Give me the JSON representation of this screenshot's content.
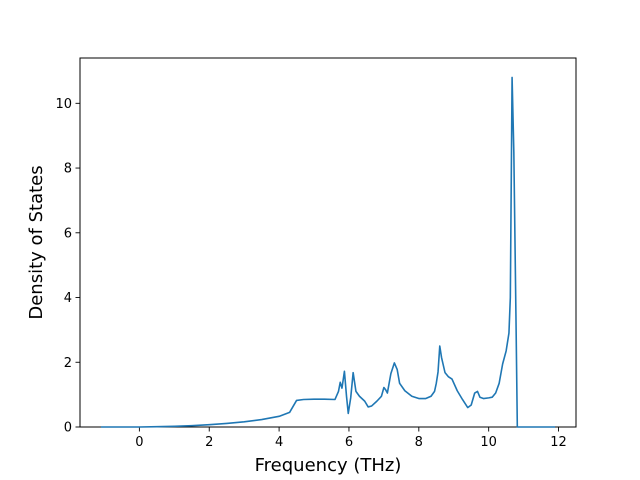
{
  "chart_data": {
    "type": "line",
    "title": "",
    "xlabel": "Frequency (THz)",
    "ylabel": "Density of States",
    "xlim": [
      -1.7,
      12.5
    ],
    "ylim": [
      0,
      11.4
    ],
    "xticks": [
      0,
      2,
      4,
      6,
      8,
      10,
      12
    ],
    "yticks": [
      0,
      2,
      4,
      6,
      8,
      10
    ],
    "grid": false,
    "legend": "none",
    "series": [
      {
        "color": "#1f77b4",
        "points": [
          [
            -1.1,
            0.0
          ],
          [
            -0.5,
            0.0
          ],
          [
            0.0,
            0.0
          ],
          [
            0.5,
            0.01
          ],
          [
            1.0,
            0.02
          ],
          [
            1.5,
            0.04
          ],
          [
            2.0,
            0.07
          ],
          [
            2.5,
            0.11
          ],
          [
            3.0,
            0.16
          ],
          [
            3.5,
            0.23
          ],
          [
            4.0,
            0.33
          ],
          [
            4.3,
            0.45
          ],
          [
            4.5,
            0.82
          ],
          [
            4.7,
            0.85
          ],
          [
            5.0,
            0.86
          ],
          [
            5.3,
            0.86
          ],
          [
            5.6,
            0.85
          ],
          [
            5.7,
            1.1
          ],
          [
            5.75,
            1.38
          ],
          [
            5.8,
            1.2
          ],
          [
            5.87,
            1.72
          ],
          [
            5.93,
            0.95
          ],
          [
            5.98,
            0.42
          ],
          [
            6.05,
            0.9
          ],
          [
            6.12,
            1.68
          ],
          [
            6.2,
            1.1
          ],
          [
            6.3,
            0.95
          ],
          [
            6.45,
            0.8
          ],
          [
            6.55,
            0.62
          ],
          [
            6.65,
            0.65
          ],
          [
            6.8,
            0.8
          ],
          [
            6.93,
            0.95
          ],
          [
            7.0,
            1.22
          ],
          [
            7.05,
            1.15
          ],
          [
            7.1,
            1.05
          ],
          [
            7.2,
            1.65
          ],
          [
            7.3,
            1.98
          ],
          [
            7.38,
            1.78
          ],
          [
            7.45,
            1.35
          ],
          [
            7.6,
            1.12
          ],
          [
            7.8,
            0.95
          ],
          [
            8.0,
            0.88
          ],
          [
            8.2,
            0.88
          ],
          [
            8.35,
            0.95
          ],
          [
            8.45,
            1.1
          ],
          [
            8.5,
            1.35
          ],
          [
            8.55,
            1.7
          ],
          [
            8.6,
            2.5
          ],
          [
            8.65,
            2.15
          ],
          [
            8.75,
            1.68
          ],
          [
            8.85,
            1.55
          ],
          [
            8.95,
            1.48
          ],
          [
            9.1,
            1.12
          ],
          [
            9.25,
            0.85
          ],
          [
            9.4,
            0.6
          ],
          [
            9.5,
            0.68
          ],
          [
            9.6,
            1.05
          ],
          [
            9.68,
            1.1
          ],
          [
            9.75,
            0.92
          ],
          [
            9.85,
            0.88
          ],
          [
            10.0,
            0.9
          ],
          [
            10.1,
            0.92
          ],
          [
            10.2,
            1.05
          ],
          [
            10.3,
            1.35
          ],
          [
            10.4,
            1.95
          ],
          [
            10.5,
            2.35
          ],
          [
            10.58,
            2.9
          ],
          [
            10.62,
            4.0
          ],
          [
            10.67,
            10.8
          ],
          [
            10.72,
            8.5
          ],
          [
            10.78,
            3.5
          ],
          [
            10.82,
            0.0
          ],
          [
            11.0,
            0.0
          ],
          [
            11.5,
            0.0
          ],
          [
            11.9,
            0.0
          ]
        ]
      }
    ]
  }
}
